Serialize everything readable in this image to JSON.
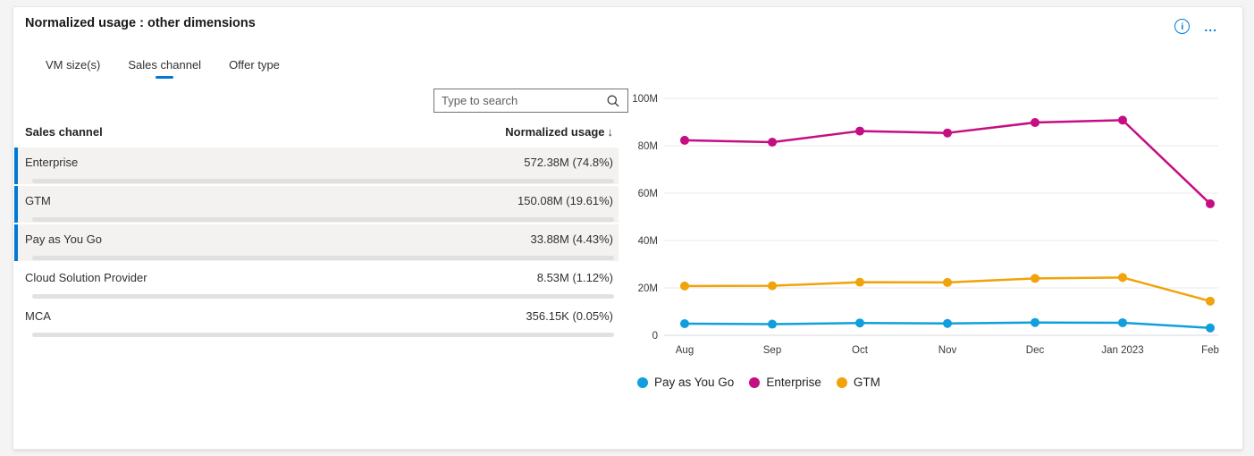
{
  "panel": {
    "title": "Normalized usage : other dimensions",
    "info_glyph": "i",
    "more_glyph": "..."
  },
  "tabs": [
    {
      "label": "VM size(s)",
      "active": false
    },
    {
      "label": "Sales channel",
      "active": true
    },
    {
      "label": "Offer type",
      "active": false
    }
  ],
  "search": {
    "placeholder": "Type to search"
  },
  "table": {
    "dimension_header": "Sales channel",
    "metric_header": "Normalized usage",
    "sort_indicator": "↓",
    "rows": [
      {
        "label": "Enterprise",
        "value": "572.38M (74.8%)",
        "pct": 74.8,
        "selected": true
      },
      {
        "label": "GTM",
        "value": "150.08M (19.61%)",
        "pct": 19.61,
        "selected": true
      },
      {
        "label": "Pay as You Go",
        "value": "33.88M (4.43%)",
        "pct": 4.43,
        "selected": true
      },
      {
        "label": "Cloud Solution Provider",
        "value": "8.53M (1.12%)",
        "pct": 1.12,
        "selected": false
      },
      {
        "label": "MCA",
        "value": "356.15K (0.05%)",
        "pct": 0.05,
        "selected": false
      }
    ]
  },
  "colors": {
    "accent": "#0078d4",
    "pay_as_you_go": "#109fdc",
    "enterprise": "#c40e82",
    "gtm": "#f0a30a",
    "gridline": "#e8e8e8",
    "axis_line": "#d9d9d9",
    "tick_text": "#3b3a39"
  },
  "chart_data": {
    "type": "line",
    "x": [
      "Aug",
      "Sep",
      "Oct",
      "Nov",
      "Dec",
      "Jan 2023",
      "Feb"
    ],
    "ylim": [
      0,
      100
    ],
    "unit": "M",
    "grid": true,
    "legend_position": "bottom",
    "yticks": [
      {
        "value": 100,
        "label": "100M"
      },
      {
        "value": 80,
        "label": "80M"
      },
      {
        "value": 60,
        "label": "60M"
      },
      {
        "value": 40,
        "label": "40M"
      },
      {
        "value": 20,
        "label": "20M"
      },
      {
        "value": 0,
        "label": "0"
      }
    ],
    "series": [
      {
        "name": "Pay as You Go",
        "color_key": "pay_as_you_go",
        "values": [
          4.9,
          4.7,
          5.2,
          5.0,
          5.4,
          5.3,
          3.1
        ]
      },
      {
        "name": "Enterprise",
        "color_key": "enterprise",
        "values": [
          82.3,
          81.5,
          86.2,
          85.4,
          89.8,
          90.8,
          55.5
        ]
      },
      {
        "name": "GTM",
        "color_key": "gtm",
        "values": [
          20.8,
          20.9,
          22.4,
          22.3,
          24.0,
          24.4,
          14.4
        ]
      }
    ]
  }
}
